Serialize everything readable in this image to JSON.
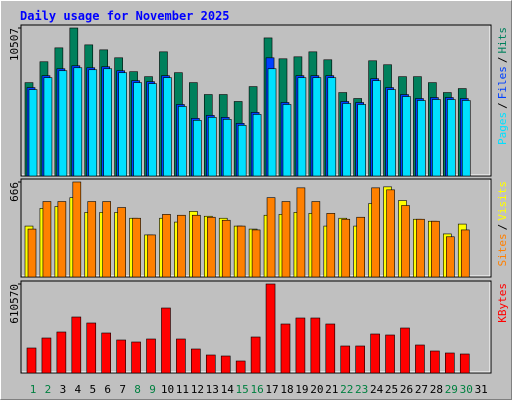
{
  "chart_data": [
    {
      "type": "bar",
      "title": "Daily usage for November 2025",
      "ylim": [
        0,
        10507
      ],
      "yticks": [
        10507
      ],
      "legend_separator": "/",
      "series": [
        {
          "name": "Hits",
          "color": "#00805c",
          "values": [
            6628,
            8110,
            9097,
            10507,
            9309,
            8956,
            8392,
            7405,
            7052,
            8815,
            7334,
            6629,
            5783,
            5783,
            5289,
            6347,
            9802,
            8321,
            8462,
            8815,
            8251,
            5924,
            5501,
            8180,
            7898,
            7052,
            7052,
            6629,
            5924,
            6206,
            null
          ]
        },
        {
          "name": "Files",
          "color": "#0040ff",
          "values": [
            6275,
            7121,
            7614,
            7826,
            7685,
            7755,
            7473,
            6768,
            6698,
            7121,
            5076,
            4089,
            4301,
            4160,
            3737,
            4512,
            8390,
            5217,
            7121,
            7121,
            7121,
            5288,
            5217,
            6909,
            6275,
            5781,
            5499,
            5570,
            5570,
            5499,
            null
          ]
        },
        {
          "name": "Pages",
          "color": "#00e0ff",
          "values": [
            6134,
            6980,
            7473,
            7685,
            7544,
            7614,
            7332,
            6627,
            6557,
            6980,
            4935,
            3948,
            4160,
            4019,
            3596,
            4371,
            7614,
            5076,
            6980,
            6980,
            6980,
            5147,
            5076,
            6768,
            6134,
            5640,
            5358,
            5429,
            5429,
            5358,
            null
          ]
        }
      ]
    },
    {
      "type": "bar",
      "ylim": [
        0,
        666
      ],
      "yticks": [
        666
      ],
      "legend_separator": "/",
      "series": [
        {
          "name": "Visits",
          "color": "#ffff00",
          "values": [
            357,
            481,
            494,
            556,
            453,
            453,
            453,
            412,
            295,
            412,
            385,
            460,
            426,
            412,
            357,
            336,
            433,
            439,
            453,
            446,
            357,
            412,
            357,
            515,
            632,
            536,
            405,
            391,
            302,
            371,
            null
          ]
        },
        {
          "name": "Sites",
          "color": "#ff8000",
          "values": [
            336,
            529,
            529,
            666,
            529,
            529,
            487,
            412,
            295,
            439,
            433,
            433,
            419,
            398,
            357,
            330,
            556,
            529,
            625,
            529,
            446,
            405,
            419,
            625,
            611,
            501,
            405,
            391,
            282,
            330,
            null
          ]
        }
      ]
    },
    {
      "type": "bar",
      "ylim": [
        0,
        610570
      ],
      "yticks": [
        610570
      ],
      "series": [
        {
          "name": "KBytes",
          "color": "#ff0000",
          "values": [
            171500,
            240100,
            281260,
            384160,
            343000,
            274400,
            226380,
            212660,
            233240,
            445900,
            233240,
            164640,
            123480,
            116620,
            82320,
            246960,
            610570,
            336140,
            377300,
            377300,
            336140,
            185220,
            185220,
            267540,
            260680,
            308700,
            192080,
            150920,
            137200,
            130340,
            null
          ]
        }
      ],
      "categories": [
        "1",
        "2",
        "3",
        "4",
        "5",
        "6",
        "7",
        "8",
        "9",
        "10",
        "11",
        "12",
        "13",
        "14",
        "15",
        "16",
        "17",
        "18",
        "19",
        "20",
        "21",
        "22",
        "23",
        "24",
        "25",
        "26",
        "27",
        "28",
        "29",
        "30",
        "31"
      ],
      "category_colors": [
        "#008040",
        "#008040",
        "#000000",
        "#000000",
        "#000000",
        "#000000",
        "#000000",
        "#008040",
        "#008040",
        "#000000",
        "#000000",
        "#000000",
        "#000000",
        "#000000",
        "#008040",
        "#008040",
        "#000000",
        "#000000",
        "#000000",
        "#000000",
        "#000000",
        "#008040",
        "#008040",
        "#000000",
        "#000000",
        "#000000",
        "#000000",
        "#000000",
        "#008040",
        "#008040",
        "#000000"
      ]
    }
  ]
}
